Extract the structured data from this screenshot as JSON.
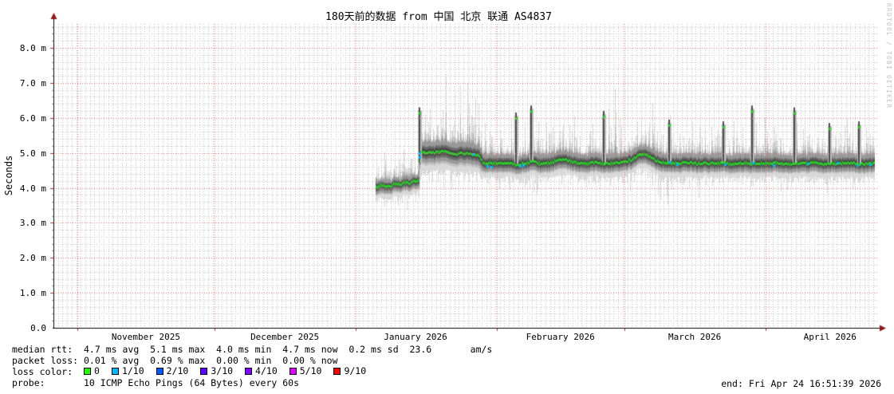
{
  "title": "180天前的数据 from 中国 北京 联通 AS4837",
  "y_axis_title": "Seconds",
  "watermark": "RRDTOOL / TOBI OETIKER",
  "legend": {
    "median_line": "median rtt:  4.7 ms avg  5.1 ms max  4.0 ms min  4.7 ms now  0.2 ms sd  23.6       am/s",
    "loss_line": "packet loss: 0.01 % avg  0.69 % max  0.00 % min  0.00 % now",
    "loss_color_label": "loss color:",
    "probe_line": "probe:       10 ICMP Echo Pings (64 Bytes) every 60s",
    "end_label": "end: Fri Apr 24 16:51:39 2026"
  },
  "chart_data": {
    "type": "area",
    "subtype": "smokeping-latency-smoke-plot",
    "title": "180天前的数据 from 中国 北京 联通 AS4837",
    "xlabel": "",
    "ylabel": "Seconds",
    "x_range_days": 180,
    "end_time": "Fri Apr 24 16:51:39 2026",
    "ylim_ms": [
      0.0,
      8.68
    ],
    "grid": "dotted, gray minor (1 day / 0.2 ms), red major (months / 1.0 ms)",
    "legend_position": "bottom-left",
    "stats": {
      "median_rtt": {
        "avg": "4.7 ms",
        "max": "5.1 ms",
        "min": "4.0 ms",
        "now": "4.7 ms",
        "sd": "0.2 ms",
        "rate": "23.6 am/s"
      },
      "packet_loss": {
        "avg": "0.01 %",
        "max": "0.69 %",
        "min": "0.00 %",
        "now": "0.00 %"
      },
      "probe": "10 ICMP Echo Pings (64 Bytes) every 60s"
    },
    "y_ticks": [
      {
        "value": 0,
        "label": "0.0"
      },
      {
        "value": 1,
        "label": "1.0 m"
      },
      {
        "value": 2,
        "label": "2.0 m"
      },
      {
        "value": 3,
        "label": "3.0 m"
      },
      {
        "value": 4,
        "label": "4.0 m"
      },
      {
        "value": 5,
        "label": "5.0 m"
      },
      {
        "value": 6,
        "label": "6.0 m"
      },
      {
        "value": 7,
        "label": "7.0 m"
      },
      {
        "value": 8,
        "label": "8.0 m"
      }
    ],
    "x_ticks": [
      {
        "label": "November 2025",
        "center_day": 20.3
      },
      {
        "label": "December 2025",
        "center_day": 50.8
      },
      {
        "label": "January 2026",
        "center_day": 79.5
      },
      {
        "label": "February 2026",
        "center_day": 111.3
      },
      {
        "label": "March 2026",
        "center_day": 140.8
      },
      {
        "label": "April 2026",
        "center_day": 170.5
      }
    ],
    "month_start_days": [
      5.3,
      35.3,
      66.3,
      97.3,
      125.3,
      156.3
    ],
    "data_start_day": 70.8,
    "data_end_day": 180.2,
    "median_path_day_ms": [
      [
        70.8,
        4.05
      ],
      [
        72,
        4.08
      ],
      [
        74,
        4.05
      ],
      [
        75,
        4.15
      ],
      [
        76,
        4.1
      ],
      [
        77,
        4.18
      ],
      [
        78,
        4.12
      ],
      [
        79,
        4.2
      ],
      [
        80.2,
        4.22
      ],
      [
        80.45,
        5.05
      ],
      [
        82,
        5.0
      ],
      [
        84,
        5.02
      ],
      [
        86,
        5.05
      ],
      [
        88,
        4.98
      ],
      [
        90,
        5.0
      ],
      [
        92,
        4.97
      ],
      [
        93.5,
        4.93
      ],
      [
        94.5,
        4.68
      ],
      [
        96,
        4.72
      ],
      [
        98,
        4.7
      ],
      [
        100,
        4.73
      ],
      [
        102,
        4.65
      ],
      [
        103,
        4.7
      ],
      [
        105,
        4.75
      ],
      [
        107,
        4.7
      ],
      [
        109,
        4.72
      ],
      [
        111,
        4.82
      ],
      [
        113,
        4.78
      ],
      [
        115,
        4.72
      ],
      [
        117,
        4.7
      ],
      [
        119,
        4.73
      ],
      [
        121,
        4.7
      ],
      [
        123,
        4.72
      ],
      [
        125,
        4.75
      ],
      [
        127,
        4.82
      ],
      [
        128.5,
        4.98
      ],
      [
        130,
        4.95
      ],
      [
        131.5,
        4.85
      ],
      [
        133,
        4.75
      ],
      [
        135,
        4.72
      ],
      [
        137,
        4.7
      ],
      [
        139,
        4.74
      ],
      [
        141,
        4.7
      ],
      [
        143,
        4.73
      ],
      [
        145,
        4.7
      ],
      [
        147,
        4.72
      ],
      [
        149,
        4.68
      ],
      [
        151,
        4.73
      ],
      [
        153,
        4.7
      ],
      [
        155,
        4.72
      ],
      [
        157,
        4.7
      ],
      [
        159,
        4.73
      ],
      [
        161,
        4.68
      ],
      [
        163,
        4.72
      ],
      [
        165,
        4.7
      ],
      [
        167,
        4.73
      ],
      [
        169,
        4.68
      ],
      [
        171,
        4.72
      ],
      [
        173,
        4.7
      ],
      [
        175,
        4.73
      ],
      [
        177,
        4.68
      ],
      [
        179,
        4.72
      ],
      [
        180.2,
        4.7
      ]
    ],
    "smoke_segments": [
      {
        "from": 70.8,
        "to": 80.4,
        "down_in": 0.13,
        "up_in": 0.12,
        "down_out": 0.33,
        "up_out": 0.3,
        "spike_up": 0.3,
        "spike_down": 0.1
      },
      {
        "from": 80.4,
        "to": 94.2,
        "down_in": 0.18,
        "up_in": 0.22,
        "down_out": 0.5,
        "up_out": 0.5,
        "spike_up": 0.36,
        "spike_down": 0.12
      },
      {
        "from": 94.2,
        "to": 180.2,
        "down_in": 0.15,
        "up_in": 0.18,
        "down_out": 0.38,
        "up_out": 0.42,
        "spike_up": 0.27,
        "spike_down": 0.1
      }
    ],
    "tall_spikes": [
      {
        "day": 80.35,
        "top_ms": 6.3
      },
      {
        "day": 101.5,
        "top_ms": 6.15
      },
      {
        "day": 104.8,
        "top_ms": 6.35
      },
      {
        "day": 120.9,
        "top_ms": 6.2
      },
      {
        "day": 135.2,
        "top_ms": 5.95
      },
      {
        "day": 147.1,
        "top_ms": 5.9
      },
      {
        "day": 153.4,
        "top_ms": 6.35
      },
      {
        "day": 162.6,
        "top_ms": 6.3
      },
      {
        "day": 170.3,
        "top_ms": 5.85
      },
      {
        "day": 176.8,
        "top_ms": 5.9
      }
    ],
    "loss_points": [
      {
        "day": 80.35,
        "ms": 5.0
      },
      {
        "day": 80.35,
        "ms": 4.88
      },
      {
        "day": 92.3,
        "ms": 4.97
      },
      {
        "day": 95.3,
        "ms": 4.62
      },
      {
        "day": 96.2,
        "ms": 4.6
      },
      {
        "day": 102.4,
        "ms": 4.63
      },
      {
        "day": 103.1,
        "ms": 4.66
      },
      {
        "day": 135.4,
        "ms": 4.75
      },
      {
        "day": 137.0,
        "ms": 4.68
      },
      {
        "day": 147.4,
        "ms": 4.67
      },
      {
        "day": 153.5,
        "ms": 4.72
      },
      {
        "day": 158.2,
        "ms": 4.66
      },
      {
        "day": 165.7,
        "ms": 4.7
      },
      {
        "day": 172.1,
        "ms": 4.72
      },
      {
        "day": 176.5,
        "ms": 4.66
      },
      {
        "day": 179.3,
        "ms": 4.68
      }
    ],
    "loss_colors": [
      {
        "label": "0",
        "color": "#26ff00"
      },
      {
        "label": "1/10",
        "color": "#00b8ff"
      },
      {
        "label": "2/10",
        "color": "#0059ff"
      },
      {
        "label": "3/10",
        "color": "#5e00ff"
      },
      {
        "label": "4/10",
        "color": "#7e00ff"
      },
      {
        "label": "5/10",
        "color": "#dd00ff"
      },
      {
        "label": "9/10",
        "color": "#ff0000"
      }
    ],
    "colors": {
      "median_line": "#2bd42b",
      "loss_dot": "#00b8ff",
      "smoke_layers": [
        "#d9d9d9",
        "#bdbdbd",
        "#999999",
        "#6a6a6a",
        "#454545"
      ],
      "grid_minor": "#bbbbbb",
      "grid_major": "#d87272",
      "axis": "#000000",
      "arrow": "#8f1a1a",
      "watermark": "#c3c3c3"
    }
  }
}
